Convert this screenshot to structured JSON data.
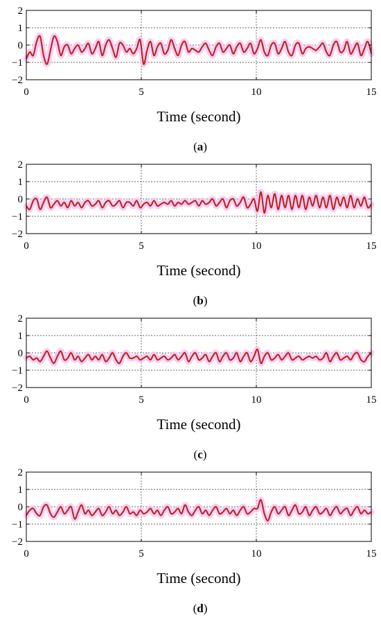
{
  "figure": {
    "panels": [
      {
        "label": "a",
        "label_text": "(a)"
      },
      {
        "label": "b",
        "label_text": "(b)"
      },
      {
        "label": "c",
        "label_text": "(c)"
      },
      {
        "label": "d",
        "label_text": "(d)"
      }
    ]
  },
  "chart_data": [
    {
      "type": "line",
      "panel": "a",
      "xlabel": "Time (second)",
      "xlim": [
        0,
        15
      ],
      "ylim": [
        -2,
        2
      ],
      "xticks": [
        0,
        5,
        10,
        15
      ],
      "yticks": [
        2,
        1,
        0,
        -1,
        -2
      ],
      "grid": {
        "x": "dotted vertical at 5 and 10",
        "y": "dotted horizontal at 1, 0, -1"
      },
      "series": [
        {
          "color": "#d01818",
          "band_color": "#f7c6f2",
          "x": [
            0,
            0.15,
            0.3,
            0.45,
            0.6,
            0.75,
            0.9,
            1.05,
            1.2,
            1.35,
            1.5,
            1.65,
            1.8,
            1.95,
            2.1,
            2.25,
            2.4,
            2.55,
            2.7,
            2.85,
            3.0,
            3.15,
            3.3,
            3.45,
            3.6,
            3.75,
            3.9,
            4.05,
            4.2,
            4.35,
            4.5,
            4.65,
            4.8,
            4.95,
            5.1,
            5.25,
            5.4,
            5.55,
            5.7,
            5.85,
            6.0,
            6.15,
            6.3,
            6.45,
            6.6,
            6.75,
            6.9,
            7.05,
            7.2,
            7.35,
            7.5,
            7.65,
            7.8,
            7.95,
            8.1,
            8.25,
            8.4,
            8.55,
            8.7,
            8.85,
            9.0,
            9.15,
            9.3,
            9.45,
            9.6,
            9.75,
            9.9,
            10.05,
            10.2,
            10.35,
            10.5,
            10.65,
            10.8,
            10.95,
            11.1,
            11.25,
            11.4,
            11.55,
            11.7,
            11.85,
            12.0,
            12.15,
            12.3,
            12.45,
            12.6,
            12.75,
            12.9,
            13.05,
            13.2,
            13.35,
            13.5,
            13.65,
            13.8,
            13.95,
            14.1,
            14.25,
            14.4,
            14.55,
            14.7,
            14.85,
            15.0
          ],
          "y": [
            -0.8,
            -0.4,
            -0.6,
            0.2,
            0.5,
            -0.6,
            -1.1,
            -0.3,
            0.5,
            0.2,
            -0.6,
            -0.1,
            0.0,
            -0.5,
            -0.2,
            0.0,
            -0.4,
            -0.2,
            0.1,
            -0.5,
            -0.2,
            0.2,
            -0.6,
            0.0,
            0.3,
            -0.2,
            -0.7,
            0.1,
            0.0,
            -0.4,
            -0.2,
            -0.5,
            -0.2,
            0.3,
            -1.1,
            -0.3,
            0.2,
            -0.6,
            -0.1,
            0.1,
            -0.5,
            -0.3,
            0.3,
            -0.2,
            -0.6,
            0.0,
            0.2,
            -0.4,
            -0.2,
            -0.3,
            -0.4,
            -0.1,
            0.1,
            -0.3,
            -0.6,
            -0.1,
            0.1,
            -0.4,
            -0.2,
            0.0,
            -0.5,
            -0.1,
            0.1,
            -0.4,
            -0.2,
            0.1,
            -0.5,
            -0.2,
            0.3,
            -0.4,
            -0.6,
            0.0,
            0.1,
            -0.5,
            -0.2,
            0.2,
            -0.4,
            -0.6,
            0.0,
            0.1,
            -0.5,
            -0.2,
            -0.1,
            -0.2,
            -0.3,
            -0.1,
            0.1,
            -0.4,
            -0.6,
            0.0,
            0.2,
            -0.4,
            -0.3,
            0.2,
            -0.5,
            -0.2,
            0.1,
            -0.6,
            -0.2,
            0.2,
            -0.5
          ]
        }
      ]
    },
    {
      "type": "line",
      "panel": "b",
      "xlabel": "Time (second)",
      "xlim": [
        0,
        15
      ],
      "ylim": [
        -2,
        2
      ],
      "xticks": [
        0,
        5,
        10,
        15
      ],
      "yticks": [
        2,
        1,
        0,
        -1,
        -2
      ],
      "grid": {
        "x": "dotted vertical at 5 and 10",
        "y": "dotted horizontal at 1, 0, -1"
      },
      "series": [
        {
          "color": "#d01818",
          "band_color": "#f7c6f2",
          "x": [
            0,
            0.15,
            0.3,
            0.45,
            0.6,
            0.75,
            0.9,
            1.05,
            1.2,
            1.35,
            1.5,
            1.65,
            1.8,
            1.95,
            2.1,
            2.25,
            2.4,
            2.55,
            2.7,
            2.85,
            3.0,
            3.15,
            3.3,
            3.45,
            3.6,
            3.75,
            3.9,
            4.05,
            4.2,
            4.35,
            4.5,
            4.65,
            4.8,
            4.95,
            5.1,
            5.25,
            5.4,
            5.55,
            5.7,
            5.85,
            6.0,
            6.15,
            6.3,
            6.45,
            6.6,
            6.75,
            6.9,
            7.05,
            7.2,
            7.35,
            7.5,
            7.65,
            7.8,
            7.95,
            8.1,
            8.25,
            8.4,
            8.55,
            8.7,
            8.85,
            9.0,
            9.15,
            9.3,
            9.45,
            9.6,
            9.75,
            9.9,
            10.05,
            10.2,
            10.35,
            10.5,
            10.65,
            10.8,
            10.95,
            11.1,
            11.25,
            11.4,
            11.55,
            11.7,
            11.85,
            12.0,
            12.15,
            12.3,
            12.45,
            12.6,
            12.75,
            12.9,
            13.05,
            13.2,
            13.35,
            13.5,
            13.65,
            13.8,
            13.95,
            14.1,
            14.25,
            14.4,
            14.55,
            14.7,
            14.85,
            15.0
          ],
          "y": [
            -0.4,
            -0.6,
            -0.1,
            0.0,
            -0.6,
            -0.2,
            0.1,
            -0.5,
            -0.3,
            -0.1,
            -0.4,
            -0.2,
            -0.5,
            -0.1,
            -0.4,
            -0.2,
            -0.5,
            -0.2,
            -0.1,
            -0.4,
            -0.3,
            -0.1,
            -0.5,
            -0.2,
            -0.1,
            -0.4,
            -0.3,
            -0.1,
            -0.5,
            -0.2,
            -0.2,
            -0.4,
            -0.1,
            -0.5,
            -0.3,
            -0.2,
            -0.4,
            -0.1,
            -0.4,
            -0.3,
            -0.2,
            -0.3,
            -0.1,
            -0.4,
            -0.2,
            -0.3,
            -0.1,
            -0.3,
            -0.2,
            -0.1,
            -0.4,
            -0.1,
            -0.3,
            -0.2,
            0.0,
            -0.4,
            -0.2,
            0.0,
            -0.5,
            -0.1,
            0.0,
            -0.4,
            -0.2,
            0.1,
            -0.5,
            -0.3,
            0.0,
            -0.7,
            0.4,
            -0.8,
            0.2,
            -0.5,
            0.3,
            -0.6,
            0.2,
            -0.5,
            0.2,
            -0.6,
            0.2,
            -0.5,
            0.2,
            -0.6,
            0.1,
            -0.4,
            0.2,
            -0.5,
            0.1,
            -0.5,
            0.2,
            -0.6,
            0.1,
            -0.4,
            0.1,
            -0.5,
            0.2,
            -0.5,
            0.0,
            -0.4,
            0.1,
            -0.5,
            -0.3
          ]
        }
      ]
    },
    {
      "type": "line",
      "panel": "c",
      "xlabel": "Time (second)",
      "xlim": [
        0,
        15
      ],
      "ylim": [
        -2,
        2
      ],
      "xticks": [
        0,
        5,
        10,
        15
      ],
      "yticks": [
        2,
        1,
        0,
        -1,
        -2
      ],
      "grid": {
        "x": "dotted vertical at 5 and 10",
        "y": "dotted horizontal at 1, 0, -1"
      },
      "series": [
        {
          "color": "#d01818",
          "band_color": "#f7c6f2",
          "x": [
            0,
            0.15,
            0.3,
            0.45,
            0.6,
            0.75,
            0.9,
            1.05,
            1.2,
            1.35,
            1.5,
            1.65,
            1.8,
            1.95,
            2.1,
            2.25,
            2.4,
            2.55,
            2.7,
            2.85,
            3.0,
            3.15,
            3.3,
            3.45,
            3.6,
            3.75,
            3.9,
            4.05,
            4.2,
            4.35,
            4.5,
            4.65,
            4.8,
            4.95,
            5.1,
            5.25,
            5.4,
            5.55,
            5.7,
            5.85,
            6.0,
            6.15,
            6.3,
            6.45,
            6.6,
            6.75,
            6.9,
            7.05,
            7.2,
            7.35,
            7.5,
            7.65,
            7.8,
            7.95,
            8.1,
            8.25,
            8.4,
            8.55,
            8.7,
            8.85,
            9.0,
            9.15,
            9.3,
            9.45,
            9.6,
            9.75,
            9.9,
            10.05,
            10.2,
            10.35,
            10.5,
            10.65,
            10.8,
            10.95,
            11.1,
            11.25,
            11.4,
            11.55,
            11.7,
            11.85,
            12.0,
            12.15,
            12.3,
            12.45,
            12.6,
            12.75,
            12.9,
            13.05,
            13.2,
            13.35,
            13.5,
            13.65,
            13.8,
            13.95,
            14.1,
            14.25,
            14.4,
            14.55,
            14.7,
            14.85,
            15.0
          ],
          "y": [
            -0.3,
            -0.2,
            -0.4,
            -0.3,
            -0.5,
            -0.2,
            0.1,
            -0.3,
            -0.6,
            -0.2,
            0.1,
            -0.4,
            -0.3,
            0.0,
            -0.4,
            -0.2,
            -0.5,
            -0.3,
            -0.1,
            -0.4,
            -0.2,
            -0.4,
            -0.1,
            -0.5,
            -0.3,
            0.0,
            -0.4,
            -0.6,
            -0.2,
            0.0,
            -0.3,
            -0.3,
            -0.2,
            -0.4,
            -0.3,
            -0.2,
            -0.4,
            -0.1,
            -0.4,
            -0.3,
            -0.2,
            -0.4,
            -0.3,
            -0.1,
            -0.4,
            -0.2,
            0.0,
            -0.5,
            -0.2,
            0.0,
            -0.4,
            -0.3,
            -0.1,
            -0.5,
            -0.2,
            0.0,
            -0.5,
            -0.2,
            0.0,
            -0.4,
            -0.3,
            0.0,
            -0.5,
            -0.2,
            0.0,
            -0.5,
            -0.2,
            0.2,
            -0.6,
            -0.2,
            0.0,
            -0.4,
            -0.3,
            -0.1,
            -0.4,
            -0.2,
            0.0,
            -0.4,
            -0.3,
            -0.2,
            -0.4,
            -0.3,
            -0.2,
            -0.3,
            -0.2,
            -0.4,
            -0.3,
            0.0,
            -0.5,
            -0.2,
            0.0,
            -0.4,
            -0.3,
            -0.2,
            -0.4,
            -0.1,
            0.0,
            -0.4,
            -0.5,
            -0.2,
            0.0
          ]
        }
      ]
    },
    {
      "type": "line",
      "panel": "d",
      "xlabel": "Time (second)",
      "xlim": [
        0,
        15
      ],
      "ylim": [
        -2,
        2
      ],
      "xticks": [
        0,
        5,
        10,
        15
      ],
      "yticks": [
        2,
        1,
        0,
        -1,
        -2
      ],
      "grid": {
        "x": "dotted vertical at 5 and 10",
        "y": "dotted horizontal at 1, 0, -1"
      },
      "series": [
        {
          "color": "#d01818",
          "band_color": "#f7c6f2",
          "x": [
            0,
            0.15,
            0.3,
            0.45,
            0.6,
            0.75,
            0.9,
            1.05,
            1.2,
            1.35,
            1.5,
            1.65,
            1.8,
            1.95,
            2.1,
            2.25,
            2.4,
            2.55,
            2.7,
            2.85,
            3.0,
            3.15,
            3.3,
            3.45,
            3.6,
            3.75,
            3.9,
            4.05,
            4.2,
            4.35,
            4.5,
            4.65,
            4.8,
            4.95,
            5.1,
            5.25,
            5.4,
            5.55,
            5.7,
            5.85,
            6.0,
            6.15,
            6.3,
            6.45,
            6.6,
            6.75,
            6.9,
            7.05,
            7.2,
            7.35,
            7.5,
            7.65,
            7.8,
            7.95,
            8.1,
            8.25,
            8.4,
            8.55,
            8.7,
            8.85,
            9.0,
            9.15,
            9.3,
            9.45,
            9.6,
            9.75,
            9.9,
            10.05,
            10.2,
            10.35,
            10.5,
            10.65,
            10.8,
            10.95,
            11.1,
            11.25,
            11.4,
            11.55,
            11.7,
            11.85,
            12.0,
            12.15,
            12.3,
            12.45,
            12.6,
            12.75,
            12.9,
            13.05,
            13.2,
            13.35,
            13.5,
            13.65,
            13.8,
            13.95,
            14.1,
            14.25,
            14.4,
            14.55,
            14.7,
            14.85,
            15.0
          ],
          "y": [
            -0.5,
            -0.2,
            -0.1,
            -0.4,
            -0.5,
            0.0,
            0.1,
            -0.4,
            -0.6,
            -0.3,
            0.0,
            -0.4,
            -0.2,
            0.0,
            -0.7,
            -0.3,
            0.1,
            -0.4,
            -0.2,
            -0.5,
            -0.3,
            -0.1,
            -0.5,
            -0.3,
            0.0,
            -0.4,
            -0.2,
            -0.5,
            -0.3,
            0.0,
            -0.4,
            -0.3,
            -0.5,
            -0.2,
            -0.4,
            -0.3,
            -0.1,
            -0.4,
            -0.2,
            -0.5,
            -0.2,
            0.0,
            -0.4,
            -0.3,
            -0.1,
            -0.4,
            0.1,
            -0.3,
            -0.5,
            -0.2,
            0.0,
            -0.4,
            -0.2,
            -0.5,
            -0.2,
            0.0,
            -0.4,
            -0.3,
            -0.1,
            -0.4,
            -0.2,
            -0.5,
            -0.2,
            0.0,
            -0.4,
            -0.3,
            -0.1,
            -0.1,
            0.4,
            -0.4,
            -0.8,
            -0.3,
            0.0,
            -0.4,
            -0.2,
            0.0,
            -0.5,
            -0.2,
            0.1,
            -0.4,
            -0.3,
            0.0,
            -0.5,
            -0.2,
            0.0,
            -0.4,
            -0.3,
            -0.1,
            -0.5,
            -0.2,
            0.0,
            -0.4,
            -0.2,
            -0.1,
            -0.5,
            -0.2,
            0.0,
            -0.4,
            -0.2,
            -0.4,
            -0.3
          ]
        }
      ]
    }
  ]
}
